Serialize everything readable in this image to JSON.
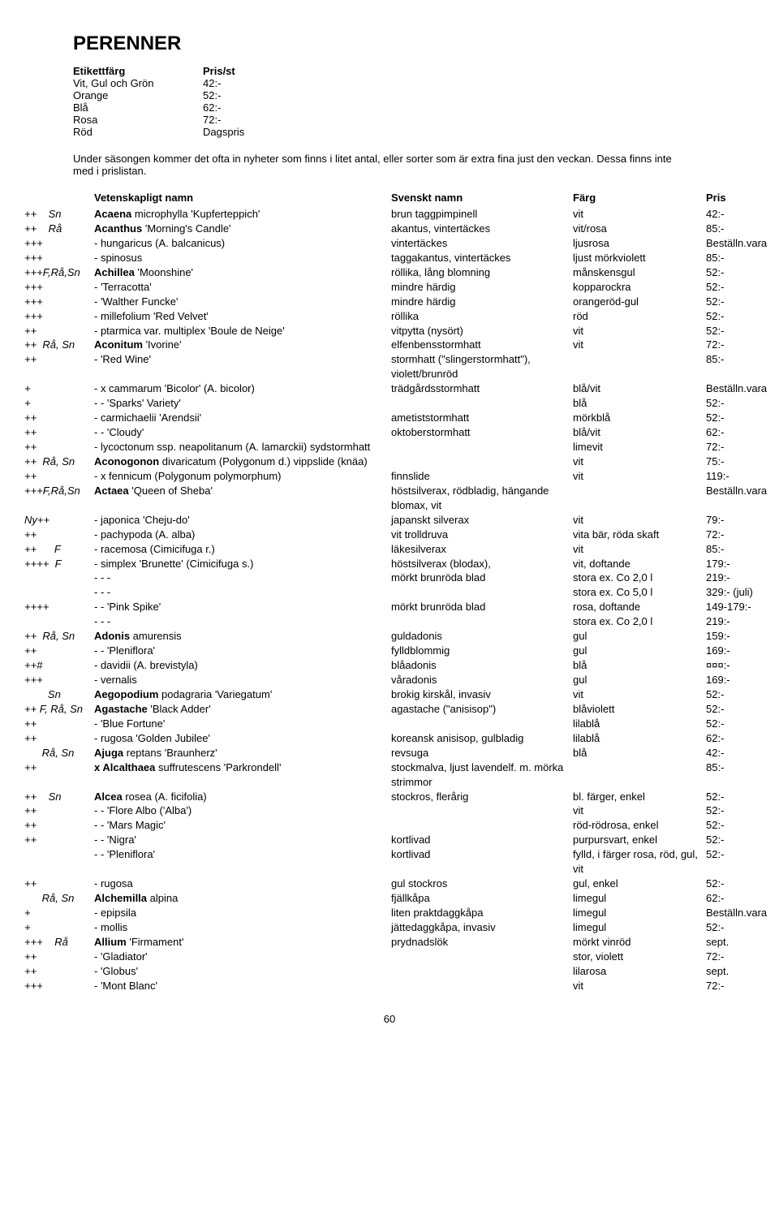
{
  "title": "PERENNER",
  "priceTable": {
    "headerLabel": "Etikettfärg",
    "headerValue": "Pris/st",
    "rows": [
      {
        "label": "Vit, Gul och Grön",
        "value": "42:-"
      },
      {
        "label": "Orange",
        "value": "52:-"
      },
      {
        "label": "Blå",
        "value": "62:-"
      },
      {
        "label": "Rosa",
        "value": "72:-"
      },
      {
        "label": "Röd",
        "value": "Dagspris"
      }
    ]
  },
  "intro": "Under säsongen kommer det ofta in nyheter som finns i litet antal, eller sorter som är extra fina just den veckan. Dessa finns inte med i prislistan.",
  "headers": {
    "name": "Vetenskapligt namn",
    "sv": "Svenskt namn",
    "color": "Färg",
    "price": "Pris"
  },
  "rows": [
    {
      "sym": "++    Sn",
      "genus": "Acaena",
      "rest": " microphylla 'Kupferteppich'",
      "sv": "brun taggpimpinell",
      "color": "vit",
      "price": "42:-"
    },
    {
      "sym": "++    Rå",
      "genus": "Acanthus",
      "rest": " 'Morning's Candle'",
      "sv": "akantus, vintertäckes",
      "color": "vit/rosa",
      "price": "85:-"
    },
    {
      "sym": "+++",
      "genus": "",
      "rest": "- hungaricus (A. balcanicus)",
      "sv": "vintertäckes",
      "color": "ljusrosa",
      "price": "Beställn.vara"
    },
    {
      "sym": "+++",
      "genus": "",
      "rest": "- spinosus",
      "sv": "taggakantus, vintertäckes",
      "color": "ljust mörkviolett",
      "price": "85:-"
    },
    {
      "sym": "+++F,Rå,Sn",
      "genus": "Achillea",
      "rest": " 'Moonshine'",
      "sv": "röllika, lång blomning",
      "color": "månskensgul",
      "price": "52:-"
    },
    {
      "sym": "+++",
      "genus": "",
      "rest": "- 'Terracotta'",
      "sv": "mindre härdig",
      "color": "kopparockra",
      "price": "52:-"
    },
    {
      "sym": "+++",
      "genus": "",
      "rest": "- 'Walther Funcke'",
      "sv": "mindre härdig",
      "color": "orangeröd-gul",
      "price": "52:-"
    },
    {
      "sym": "+++",
      "genus": "",
      "rest": "- millefolium 'Red Velvet'",
      "sv": "röllika",
      "color": "röd",
      "price": "52:-"
    },
    {
      "sym": "++",
      "genus": "",
      "rest": "- ptarmica var. multiplex 'Boule de Neige'",
      "sv": "vitpytta (nysört)",
      "color": "vit",
      "price": "52:-"
    },
    {
      "sym": "++  Rå, Sn",
      "genus": "Aconitum",
      "rest": " 'Ivorine'",
      "sv": "elfenbensstormhatt",
      "color": "vit",
      "price": "72:-"
    },
    {
      "sym": "++",
      "genus": "",
      "rest": "- 'Red Wine'",
      "sv": "stormhatt (\"slingerstormhatt\"), violett/brunröd",
      "color": "",
      "price": "85:-"
    },
    {
      "sym": "+",
      "genus": "",
      "rest": "- x cammarum 'Bicolor' (A. bicolor)",
      "sv": "trädgårdsstormhatt",
      "color": "blå/vit",
      "price": "Beställn.vara"
    },
    {
      "sym": "+",
      "genus": "",
      "rest": "- - 'Sparks' Variety'",
      "sv": "",
      "color": "blå",
      "price": "52:-"
    },
    {
      "sym": "++",
      "genus": "",
      "rest": "- carmichaelii 'Arendsii'",
      "sv": "ametiststormhatt",
      "color": "mörkblå",
      "price": "52:-"
    },
    {
      "sym": "++",
      "genus": "",
      "rest": "- - 'Cloudy'",
      "sv": "oktoberstormhatt",
      "color": "blå/vit",
      "price": "62:-"
    },
    {
      "sym": "++",
      "genus": "",
      "rest": "- lycoctonum ssp. neapolitanum (A. lamarckii) sydstormhatt",
      "sv": "",
      "color": "limevit",
      "price": "72:-"
    },
    {
      "sym": "++  Rå, Sn",
      "genus": "Aconogonon",
      "rest": " divaricatum (Polygonum d.) vippslide (knäa)",
      "sv": "",
      "color": "vit",
      "price": "75:-"
    },
    {
      "sym": "++",
      "genus": "",
      "rest": "- x fennicum (Polygonum polymorphum)",
      "sv": "finnslide",
      "color": "vit",
      "price": "119:-"
    },
    {
      "sym": "+++F,Rå,Sn",
      "genus": "Actaea",
      "rest": " 'Queen of Sheba'",
      "sv": "höstsilverax, rödbladig, hängande blomax, vit",
      "color": "",
      "price": "Beställn.vara"
    },
    {
      "sym": "Ny++",
      "genus": "",
      "rest": "- japonica 'Cheju-do'",
      "sv": "japanskt silverax",
      "color": "vit",
      "price": "79:-"
    },
    {
      "sym": "++",
      "genus": "",
      "rest": "- pachypoda (A. alba)",
      "sv": "vit trolldruva",
      "color": "vita bär, röda skaft",
      "price": "72:-"
    },
    {
      "sym": "++      F",
      "genus": "",
      "rest": "- racemosa (Cimicifuga r.)",
      "sv": "läkesilverax",
      "color": "vit",
      "price": "85:-"
    },
    {
      "sym": "++++  F",
      "genus": "",
      "rest": "- simplex 'Brunette' (Cimicifuga s.)",
      "sv": "höstsilverax (blodax),",
      "color": "vit, doftande",
      "price": "179:-"
    },
    {
      "sym": "",
      "genus": "",
      "rest": "- - -",
      "sv": "mörkt brunröda blad",
      "color": "stora ex. Co 2,0 l",
      "price": "219:-"
    },
    {
      "sym": "",
      "genus": "",
      "rest": "- - -",
      "sv": "",
      "color": "stora ex. Co 5,0 l",
      "price": "329:- (juli)"
    },
    {
      "sym": "++++",
      "genus": "",
      "rest": "- - 'Pink Spike'",
      "sv": "mörkt brunröda blad",
      "color": "rosa, doftande",
      "price": "149-179:-"
    },
    {
      "sym": "",
      "genus": "",
      "rest": "- - -",
      "sv": "",
      "color": "stora ex. Co 2,0 l",
      "price": "219:-"
    },
    {
      "sym": "++  Rå, Sn",
      "genus": "Adonis",
      "rest": " amurensis",
      "sv": "guldadonis",
      "color": "gul",
      "price": "159:-"
    },
    {
      "sym": "++",
      "genus": "",
      "rest": "- - 'Pleniflora'",
      "sv": "fylldblommig",
      "color": "gul",
      "price": "169:-"
    },
    {
      "sym": "++#",
      "genus": "",
      "rest": "- davidii (A. brevistyla)",
      "sv": "blåadonis",
      "color": "blå",
      "price": "¤¤¤:-"
    },
    {
      "sym": "+++",
      "genus": "",
      "rest": "- vernalis",
      "sv": "våradonis",
      "color": "gul",
      "price": "169:-"
    },
    {
      "sym": "        Sn",
      "genus": "Aegopodium",
      "rest": " podagraria 'Variegatum'",
      "sv": "brokig kirskål, invasiv",
      "color": "vit",
      "price": "52:-"
    },
    {
      "sym": "++ F, Rå, Sn",
      "genus": "Agastache",
      "rest": " 'Black Adder'",
      "sv": "agastache (\"anisisop\")",
      "color": "blåviolett",
      "price": "52:-"
    },
    {
      "sym": "++",
      "genus": "",
      "rest": "- 'Blue Fortune'",
      "sv": "",
      "color": "lilablå",
      "price": "52:-"
    },
    {
      "sym": "++",
      "genus": "",
      "rest": "- rugosa 'Golden Jubilee'",
      "sv": "koreansk anisisop, gulbladig",
      "color": "lilablå",
      "price": "62:-"
    },
    {
      "sym": "      Rå, Sn",
      "genus": "Ajuga",
      "rest": " reptans 'Braunherz'",
      "sv": "revsuga",
      "color": "blå",
      "price": "42:-"
    },
    {
      "sym": "++",
      "genus": "x Alcalthaea",
      "rest": " suffrutescens 'Parkrondell'",
      "sv": "stockmalva, ljust lavendelf. m. mörka strimmor",
      "color": "",
      "price": "85:-"
    },
    {
      "sym": "++    Sn",
      "genus": "Alcea",
      "rest": " rosea (A. ficifolia)",
      "sv": "stockros, flerårig",
      "color": "bl. färger, enkel",
      "price": "52:-"
    },
    {
      "sym": "++",
      "genus": "",
      "rest": "- - 'Flore Albo ('Alba')",
      "sv": "",
      "color": "vit",
      "price": "52:-"
    },
    {
      "sym": "++",
      "genus": "",
      "rest": "- - 'Mars Magic'",
      "sv": "",
      "color": "röd-rödrosa, enkel",
      "price": "52:-"
    },
    {
      "sym": "++",
      "genus": "",
      "rest": "- - 'Nigra'",
      "sv": "kortlivad",
      "color": "purpursvart, enkel",
      "price": "52:-"
    },
    {
      "sym": "",
      "genus": "",
      "rest": "- - 'Pleniflora'",
      "sv": "kortlivad",
      "color": "fylld, i färger rosa, röd, gul, vit",
      "price": "52:-"
    },
    {
      "sym": "++",
      "genus": "",
      "rest": "- rugosa",
      "sv": "gul stockros",
      "color": "gul, enkel",
      "price": "52:-"
    },
    {
      "sym": "      Rå, Sn",
      "genus": "Alchemilla",
      "rest": " alpina",
      "sv": "fjällkåpa",
      "color": "limegul",
      "price": "62:-"
    },
    {
      "sym": "+",
      "genus": "",
      "rest": "- epipsila",
      "sv": "liten praktdaggkåpa",
      "color": "limegul",
      "price": "Beställn.vara"
    },
    {
      "sym": "+",
      "genus": "",
      "rest": "- mollis",
      "sv": "jättedaggkåpa, invasiv",
      "color": "limegul",
      "price": "52:-"
    },
    {
      "sym": "+++    Rå",
      "genus": "Allium",
      "rest": " 'Firmament'",
      "sv": "prydnadslök",
      "color": "mörkt vinröd",
      "price": "sept."
    },
    {
      "sym": "++",
      "genus": "",
      "rest": "- 'Gladiator'",
      "sv": "",
      "color": "stor, violett",
      "price": "72:-"
    },
    {
      "sym": "++",
      "genus": "",
      "rest": "- 'Globus'",
      "sv": "",
      "color": "lilarosa",
      "price": "sept."
    },
    {
      "sym": "+++",
      "genus": "",
      "rest": "- 'Mont Blanc'",
      "sv": "",
      "color": "vit",
      "price": "72:-"
    }
  ],
  "pageNum": "60"
}
